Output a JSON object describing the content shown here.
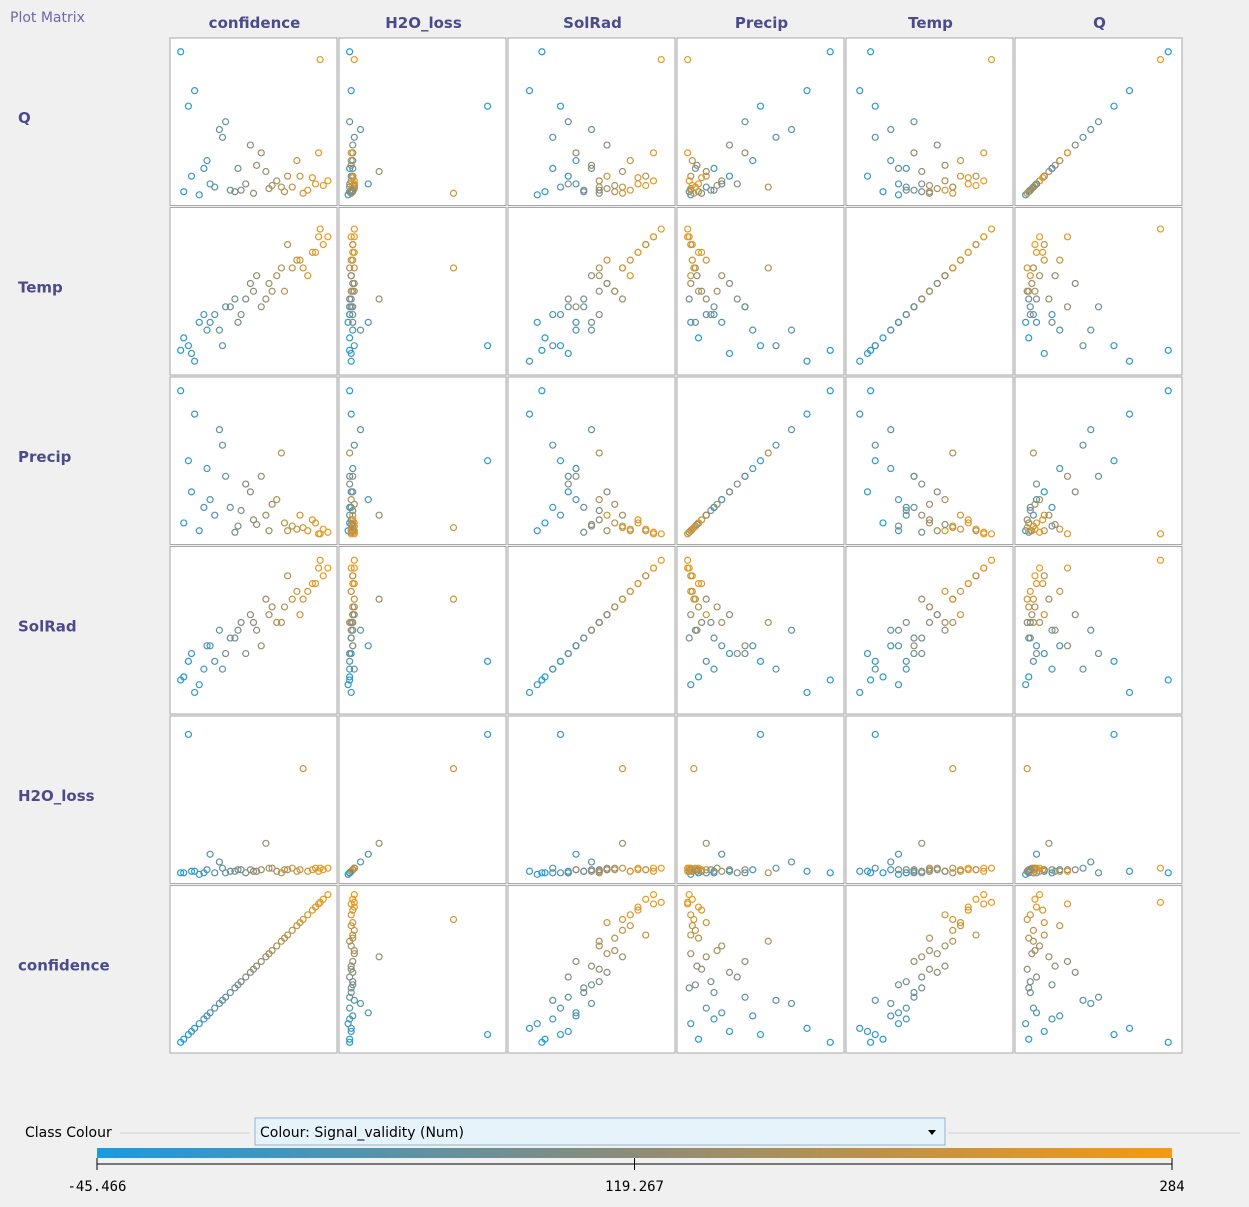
{
  "header": {
    "title": "Plot Matrix"
  },
  "matrix": {
    "columns": [
      "confidence",
      "H2O_loss",
      "SolRad",
      "Precip",
      "Temp",
      "Q"
    ],
    "rows": [
      "Q",
      "Temp",
      "Precip",
      "SolRad",
      "H2O_loss",
      "confidence"
    ],
    "range": [
      0,
      100
    ],
    "data": {
      "confidence": [
        5,
        10,
        15,
        20,
        25,
        30,
        35,
        40,
        45,
        50,
        55,
        60,
        65,
        70,
        75,
        80,
        85,
        90,
        95,
        98,
        8,
        18,
        28,
        38,
        48,
        58,
        68,
        78,
        88,
        93,
        12,
        22,
        32,
        42,
        52,
        62,
        72,
        82,
        92,
        3
      ],
      "H2O_loss": [
        3,
        4,
        2,
        5,
        3,
        6,
        4,
        5,
        3,
        4,
        5,
        6,
        4,
        5,
        6,
        5,
        4,
        6,
        5,
        6,
        92,
        3,
        10,
        4,
        5,
        22,
        3,
        4,
        5,
        6,
        4,
        15,
        3,
        5,
        4,
        6,
        5,
        70,
        4,
        3
      ],
      "SolRad": [
        20,
        35,
        15,
        40,
        30,
        25,
        45,
        50,
        35,
        55,
        40,
        60,
        55,
        65,
        70,
        60,
        75,
        80,
        85,
        90,
        30,
        25,
        50,
        45,
        60,
        70,
        55,
        75,
        80,
        95,
        10,
        40,
        35,
        55,
        50,
        65,
        85,
        70,
        90,
        18
      ],
      "Precip": [
        10,
        30,
        5,
        45,
        15,
        60,
        20,
        8,
        35,
        12,
        40,
        5,
        25,
        10,
        8,
        15,
        5,
        10,
        6,
        4,
        50,
        20,
        70,
        4,
        30,
        15,
        55,
        6,
        12,
        3,
        80,
        25,
        40,
        18,
        9,
        22,
        5,
        7,
        3,
        95
      ],
      "Temp": [
        20,
        10,
        30,
        25,
        35,
        15,
        40,
        30,
        45,
        50,
        40,
        55,
        60,
        50,
        65,
        70,
        60,
        75,
        80,
        85,
        15,
        35,
        25,
        45,
        55,
        45,
        65,
        70,
        75,
        90,
        5,
        30,
        40,
        35,
        60,
        50,
        80,
        65,
        85,
        12
      ],
      "Q": [
        5,
        15,
        3,
        25,
        8,
        40,
        6,
        20,
        10,
        4,
        30,
        7,
        12,
        5,
        8,
        15,
        6,
        10,
        9,
        12,
        60,
        20,
        45,
        5,
        35,
        18,
        8,
        25,
        14,
        90,
        70,
        10,
        50,
        6,
        22,
        9,
        15,
        4,
        30,
        95
      ],
      "signal_validity": [
        -29,
        -13,
        4,
        20,
        37,
        53,
        70,
        86,
        102,
        119,
        135,
        152,
        168,
        185,
        201,
        218,
        234,
        251,
        267,
        277,
        -19,
        14,
        47,
        80,
        112,
        145,
        178,
        211,
        244,
        260,
        -6,
        27,
        60,
        93,
        125,
        158,
        191,
        224,
        257,
        -36
      ]
    }
  },
  "class_colour": {
    "label": "Class Colour",
    "selection": "Colour: Signal_validity (Num)",
    "scale": {
      "ticks": [
        -45.466,
        119.267,
        284
      ],
      "colors": [
        "#1a9be0",
        "#8c8c78",
        "#f59a12"
      ]
    }
  }
}
